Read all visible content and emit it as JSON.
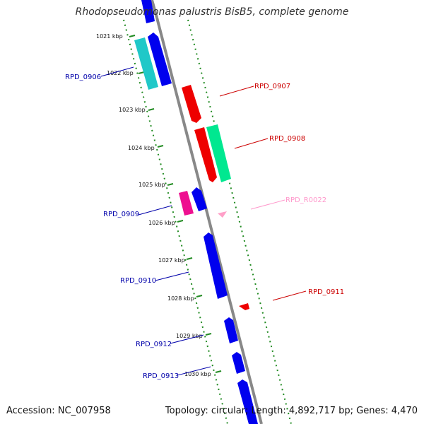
{
  "title": "Rhodopseudomonas palustris BisB5, complete genome",
  "footer": {
    "accession": "Accession: NC_007958",
    "summary": "Topology: circular; Length: 4,892,717 bp; Genes: 4,470"
  },
  "colors": {
    "forward_blue": "#0000ee",
    "reverse_red": "#ee0000",
    "cyan": "#20c8c8",
    "green": "#00e890",
    "magenta": "#ee1090",
    "pink": "#ffa0c8",
    "ruler": "#228b22",
    "backbone": "#888888"
  },
  "kbp_ticks": [
    "1021 kbp",
    "1022 kbp",
    "1023 kbp",
    "1024 kbp",
    "1025 kbp",
    "1026 kbp",
    "1027 kbp",
    "1028 kbp",
    "1029 kbp",
    "1030 kbp"
  ],
  "gene_labels": [
    {
      "text": "RPD_0906",
      "side": "left",
      "color": "#0000aa"
    },
    {
      "text": "RPD_0907",
      "side": "right",
      "color": "#cc0000"
    },
    {
      "text": "RPD_0908",
      "side": "right",
      "color": "#cc0000"
    },
    {
      "text": "RPD_R0022",
      "side": "right",
      "color": "#ff99cc"
    },
    {
      "text": "RPD_0909",
      "side": "left",
      "color": "#0000aa"
    },
    {
      "text": "RPD_0910",
      "side": "left",
      "color": "#0000aa"
    },
    {
      "text": "RPD_0911",
      "side": "right",
      "color": "#cc0000"
    },
    {
      "text": "RPD_0912",
      "side": "left",
      "color": "#0000aa"
    },
    {
      "text": "RPD_0913",
      "side": "left",
      "color": "#0000aa"
    }
  ]
}
